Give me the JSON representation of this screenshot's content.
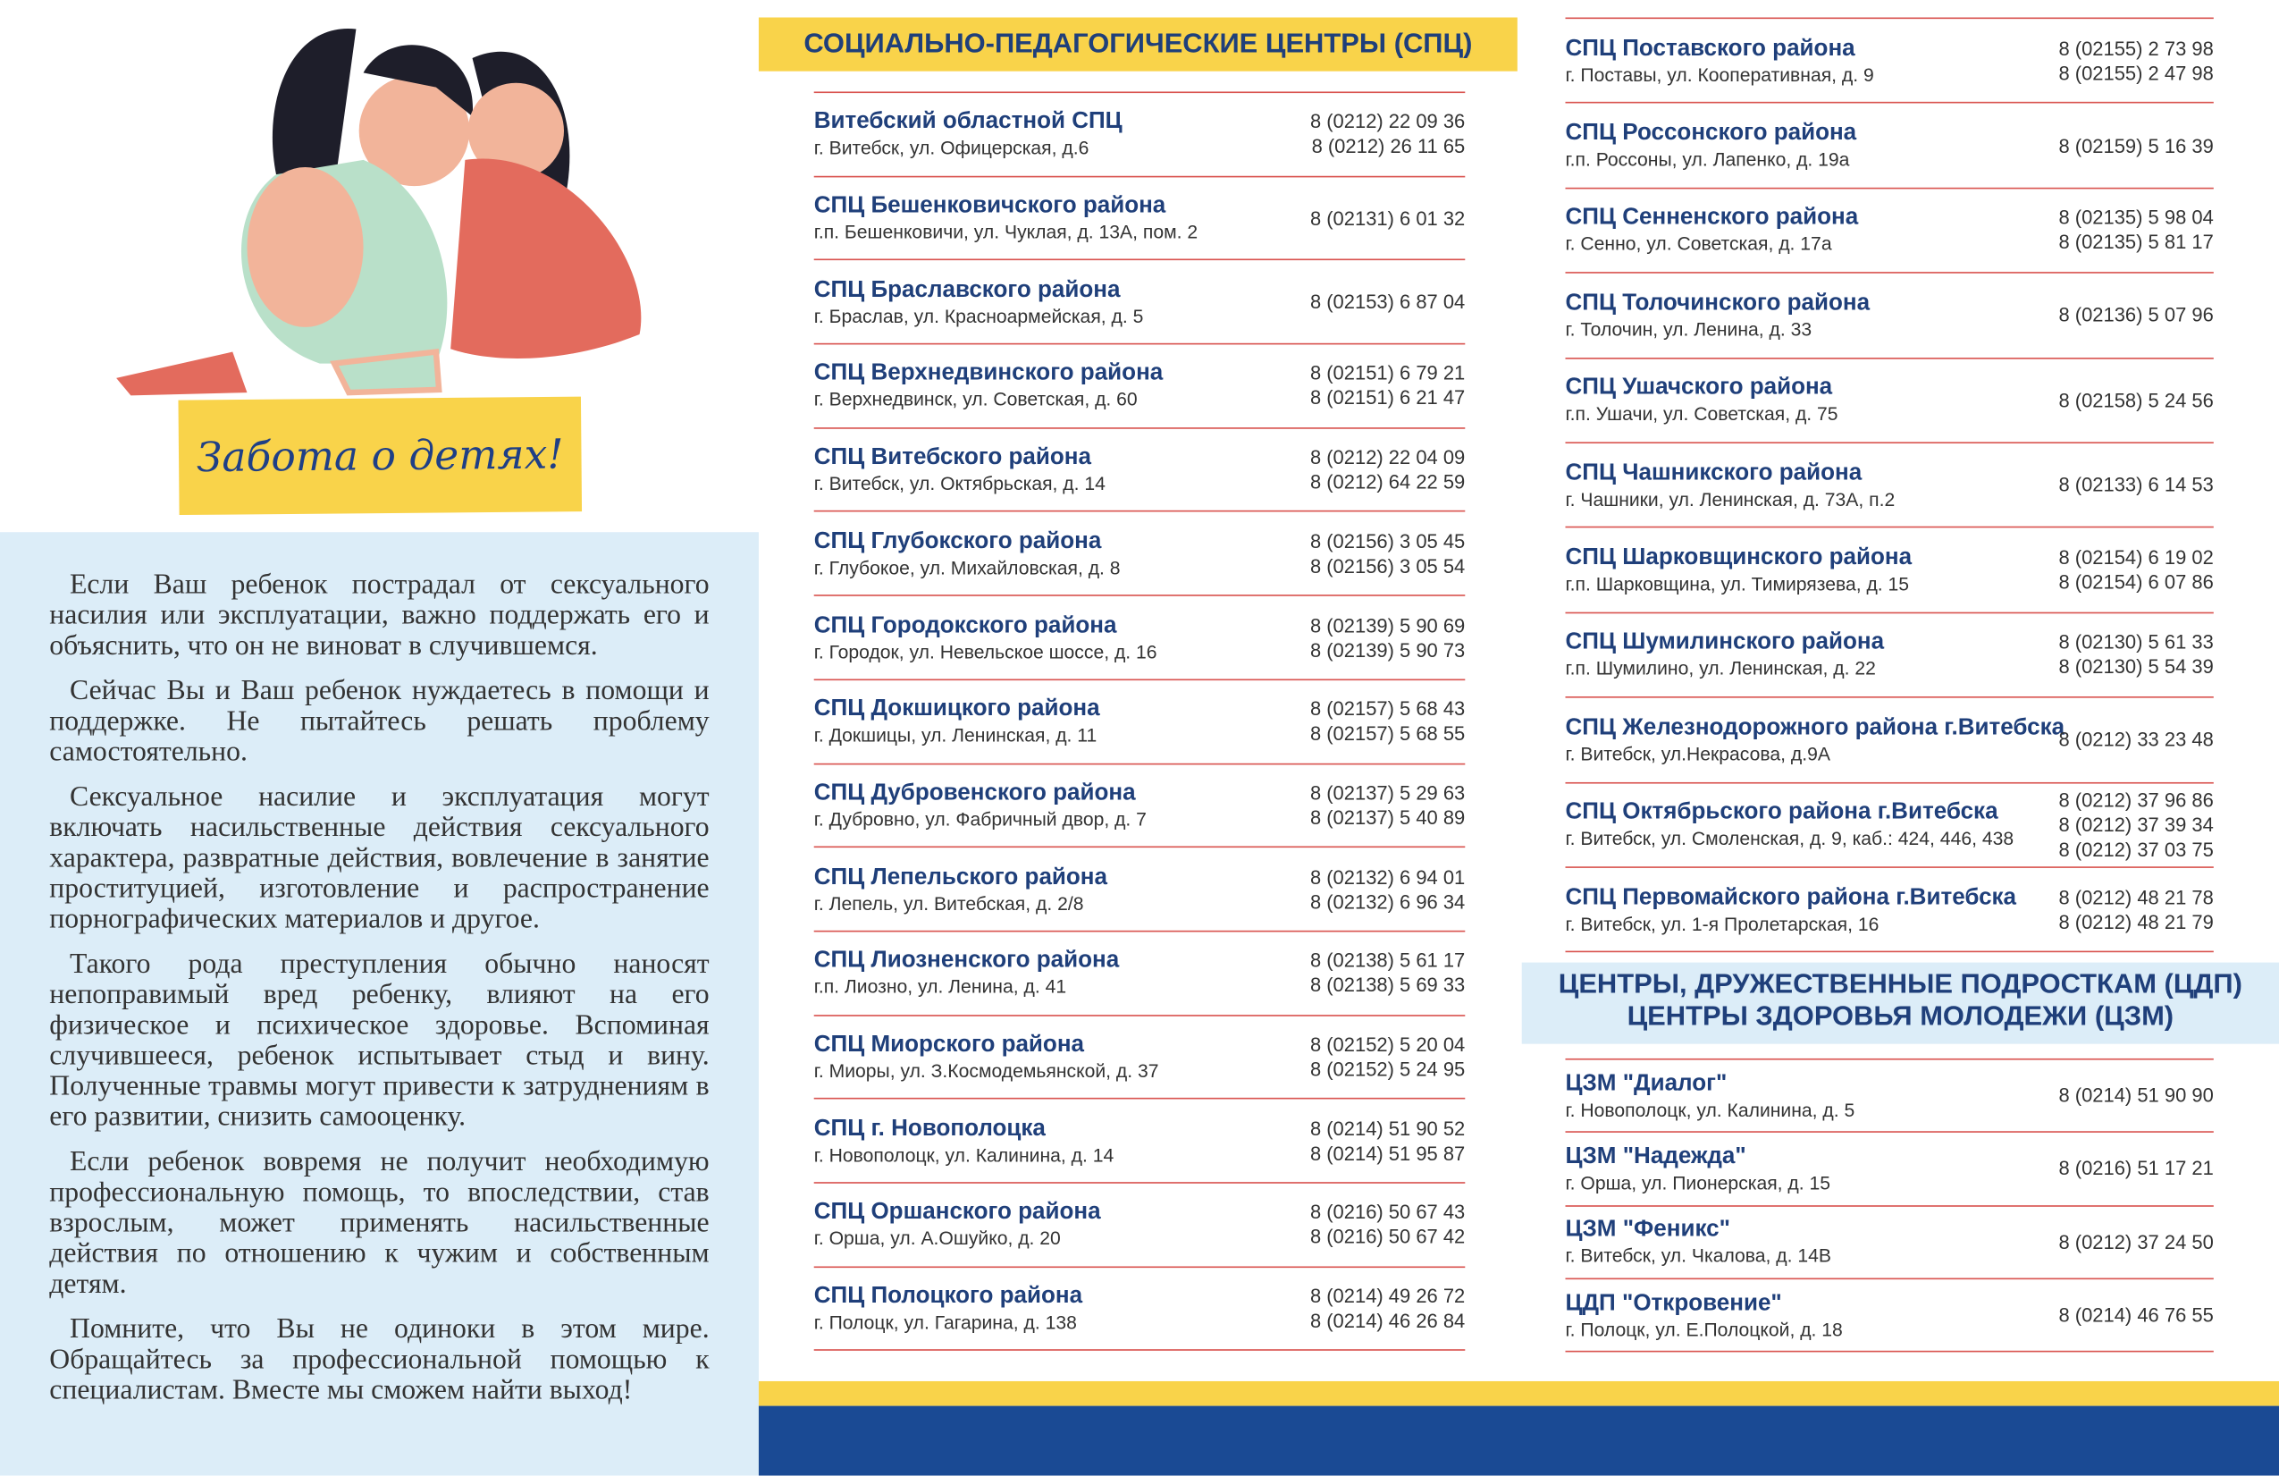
{
  "illustration_caption": "Забота о детях!",
  "paragraphs": [
    "Если Ваш ребенок пострадал от сексуального насилия или эксплуатации, важно поддержать его и объяснить, что он не виноват в случившемся.",
    "Сейчас Вы и Ваш ребенок нуждаетесь в помощи и поддержке. Не пытайтесь решать проблему самостоятельно.",
    "Сексуальное насилие и эксплуатация могут включать насильственные действия сексуального характера, развратные действия, вовлечение в занятие проституцией, изготовление и распространение порнографических материалов и другое.",
    "Такого рода преступления обычно наносят непоправимый вред ребенку, влияют на его физическое и психическое здоровье. Вспоминая случившееся, ребенок испытывает стыд и вину. Полученные травмы могут привести к затруднениям в его развитии, снизить самооценку.",
    "Если ребенок вовремя не получит необходимую профессиональную помощь, то впоследствии, став взрослым, может применять насильственные действия по отношению к чужим и собственным детям.",
    "Помните, что Вы не одиноки в этом мире. Обращайтесь за профессиональной помощью к специалистам. Вместе мы сможем найти выход!"
  ],
  "spc": {
    "title": "СОЦИАЛЬНО-ПЕДАГОГИЧЕСКИЕ ЦЕНТРЫ (СПЦ)",
    "entries": [
      {
        "name": "Витебский областной СПЦ",
        "address": "г. Витебск, ул. Офицерская, д.6",
        "phones": [
          "8 (0212) 22 09 36",
          "8 (0212) 26 11 65"
        ]
      },
      {
        "name": "СПЦ Бешенковичского района",
        "address": "г.п. Бешенковичи, ул. Чуклая, д. 13А, пом. 2",
        "phones": [
          "8 (02131) 6 01 32"
        ]
      },
      {
        "name": "СПЦ Браславского района",
        "address": "г. Браслав, ул. Красноармейская, д. 5",
        "phones": [
          "8 (02153) 6 87 04"
        ]
      },
      {
        "name": "СПЦ Верхнедвинского района",
        "address": "г. Верхнедвинск, ул. Советская, д. 60",
        "phones": [
          "8 (02151) 6 79 21",
          "8 (02151) 6 21 47"
        ]
      },
      {
        "name": "СПЦ Витебского района",
        "address": "г. Витебск, ул. Октябрьская, д. 14",
        "phones": [
          "8 (0212) 22 04 09",
          "8 (0212) 64 22 59"
        ]
      },
      {
        "name": "СПЦ Глубокского района",
        "address": "г. Глубокое, ул. Михайловская, д. 8",
        "phones": [
          "8 (02156) 3 05 45",
          "8 (02156) 3 05 54"
        ]
      },
      {
        "name": "СПЦ Городокского района",
        "address": "г. Городок, ул. Невельское шоссе, д. 16",
        "phones": [
          "8 (02139) 5 90 69",
          "8 (02139) 5 90 73"
        ]
      },
      {
        "name": "СПЦ Докшицкого района",
        "address": "г. Докшицы, ул. Ленинская, д. 11",
        "phones": [
          "8 (02157) 5 68 43",
          "8 (02157) 5 68 55"
        ]
      },
      {
        "name": "СПЦ Дубровенского района",
        "address": "г. Дубровно, ул. Фабричный двор, д. 7",
        "phones": [
          "8 (02137) 5 29 63",
          "8 (02137) 5 40 89"
        ]
      },
      {
        "name": "СПЦ Лепельского района",
        "address": "г. Лепель, ул. Витебская, д. 2/8",
        "phones": [
          "8 (02132) 6 94 01",
          "8 (02132) 6 96 34"
        ]
      },
      {
        "name": "СПЦ Лиозненского района",
        "address": "г.п. Лиозно, ул. Ленина, д. 41",
        "phones": [
          "8 (02138) 5 61 17",
          "8 (02138) 5 69 33"
        ]
      },
      {
        "name": "СПЦ Миорского района",
        "address": "г. Миоры, ул. З.Космодемьянской, д. 37",
        "phones": [
          "8 (02152) 5 20 04",
          "8 (02152) 5 24 95"
        ]
      },
      {
        "name": "СПЦ г. Новополоцка",
        "address": "г. Новополоцк, ул. Калинина, д. 14",
        "phones": [
          "8 (0214) 51 90 52",
          "8 (0214) 51 95 87"
        ]
      },
      {
        "name": "СПЦ Оршанского района",
        "address": "г. Орша, ул. А.Ошуйко, д. 20",
        "phones": [
          "8 (0216) 50 67 43",
          "8 (0216) 50 67 42"
        ]
      },
      {
        "name": "СПЦ Полоцкого района",
        "address": "г. Полоцк, ул. Гагарина, д. 138",
        "phones": [
          "8 (0214) 49 26 72",
          "8 (0214) 46 26 84"
        ]
      }
    ]
  },
  "spc_continued": [
    {
      "name": "СПЦ Поставского района",
      "address": "г. Поставы, ул. Кооперативная, д. 9",
      "phones": [
        "8 (02155) 2 73 98",
        "8 (02155) 2 47 98"
      ]
    },
    {
      "name": "СПЦ Россонского района",
      "address": "г.п. Россоны, ул. Лапенко, д. 19а",
      "phones": [
        "8 (02159) 5 16 39"
      ]
    },
    {
      "name": "СПЦ Сенненского района",
      "address": "г. Сенно, ул. Советская, д. 17а",
      "phones": [
        "8 (02135) 5 98 04",
        "8 (02135) 5 81 17"
      ]
    },
    {
      "name": "СПЦ Толочинского района",
      "address": "г. Толочин, ул. Ленина, д. 33",
      "phones": [
        "8 (02136) 5 07 96"
      ]
    },
    {
      "name": "СПЦ Ушачского района",
      "address": "г.п. Ушачи, ул. Советская, д. 75",
      "phones": [
        "8 (02158) 5 24 56"
      ]
    },
    {
      "name": "СПЦ Чашникского района",
      "address": "г. Чашники, ул. Ленинская, д. 73А, п.2",
      "phones": [
        "8 (02133) 6 14 53"
      ]
    },
    {
      "name": "СПЦ Шарковщинского района",
      "address": "г.п. Шарковщина, ул. Тимирязева, д. 15",
      "phones": [
        "8 (02154) 6 19 02",
        "8 (02154) 6 07 86"
      ]
    },
    {
      "name": "СПЦ Шумилинского района",
      "address": "г.п. Шумилино, ул. Ленинская, д. 22",
      "phones": [
        "8 (02130) 5 61 33",
        "8 (02130) 5 54 39"
      ]
    },
    {
      "name": "СПЦ Железнодорожного района г.Витебска",
      "address": "г. Витебск, ул.Некрасова, д.9А",
      "phones": [
        "8 (0212) 33 23 48"
      ]
    },
    {
      "name": "СПЦ Октябрьского района г.Витебска",
      "address": "г. Витебск, ул. Смоленская, д. 9, каб.: 424, 446, 438",
      "phones": [
        "8 (0212) 37 96 86",
        "8 (0212) 37 39 34",
        "8 (0212) 37 03 75"
      ]
    },
    {
      "name": "СПЦ Первомайского района г.Витебска",
      "address": "г. Витебск, ул. 1-я Пролетарская, 16",
      "phones": [
        "8 (0212) 48 21 78",
        "8 (0212) 48 21 79"
      ]
    }
  ],
  "youth": {
    "title_lines": [
      "ЦЕНТРЫ, ДРУЖЕСТВЕННЫЕ ПОДРОСТКАМ (ЦДП)",
      "ЦЕНТРЫ ЗДОРОВЬЯ МОЛОДЕЖИ (ЦЗМ)"
    ],
    "entries": [
      {
        "name": "ЦЗМ \"Диалог\"",
        "address": "г. Новополоцк, ул. Калинина, д. 5",
        "phones": [
          "8 (0214) 51 90 90"
        ]
      },
      {
        "name": "ЦЗМ \"Надежда\"",
        "address": "г. Орша, ул. Пионерская, д. 15",
        "phones": [
          "8 (0216) 51 17 21"
        ]
      },
      {
        "name": "ЦЗМ \"Феникс\"",
        "address": "г. Витебск, ул. Чкалова, д. 14В",
        "phones": [
          "8 (0212) 37 24 50"
        ]
      },
      {
        "name": "ЦДП \"Откровение\"",
        "address": "г. Полоцк, ул. Е.Полоцкой, д. 18",
        "phones": [
          "8 (0214) 46 76 55"
        ]
      }
    ]
  }
}
